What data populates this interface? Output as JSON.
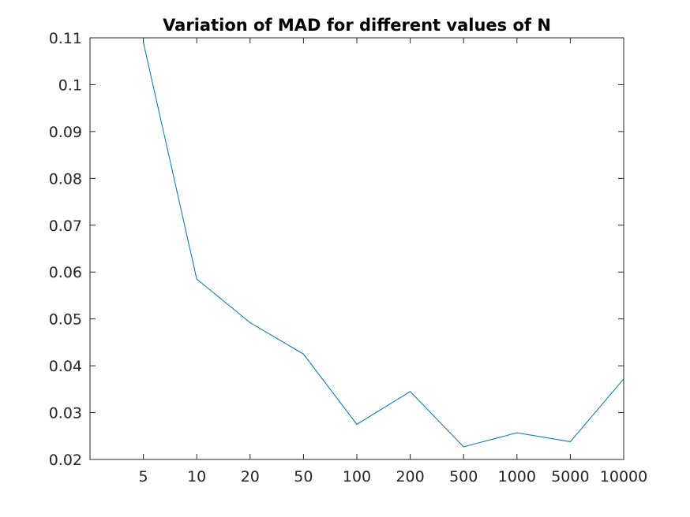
{
  "chart_data": {
    "type": "line",
    "title": "Variation of MAD for different values of N",
    "xlabel": "",
    "ylabel": "",
    "categories": [
      "5",
      "10",
      "20",
      "50",
      "100",
      "200",
      "500",
      "1000",
      "5000",
      "10000"
    ],
    "x_range": [
      0,
      10
    ],
    "values": [
      0.109,
      0.0585,
      0.0492,
      0.0425,
      0.0275,
      0.0345,
      0.0227,
      0.0257,
      0.0238,
      0.0372
    ],
    "ylim": [
      0.02,
      0.11
    ],
    "yticks": [
      "0.02",
      "0.03",
      "0.04",
      "0.05",
      "0.06",
      "0.07",
      "0.08",
      "0.09",
      "0.1",
      "0.11"
    ],
    "grid": false,
    "line_color": "#0072bd"
  }
}
